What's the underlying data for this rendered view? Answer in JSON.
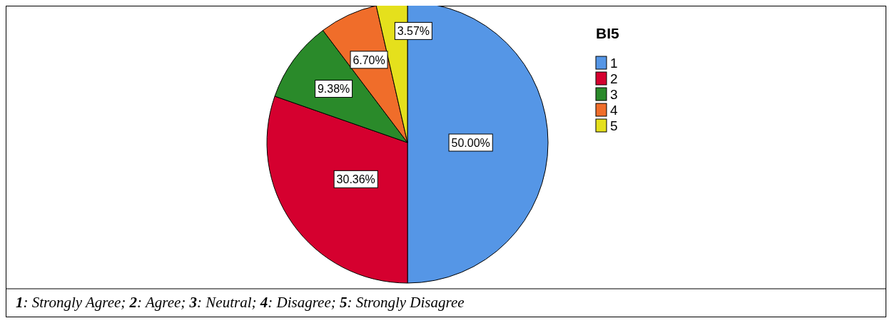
{
  "chart_data": {
    "type": "pie",
    "legend_title": "BI5",
    "categories": [
      "1",
      "2",
      "3",
      "4",
      "5"
    ],
    "values": [
      50.0,
      30.36,
      9.38,
      6.7,
      3.57
    ],
    "colors": [
      "#5596e6",
      "#d5002f",
      "#2a8a2a",
      "#f06d2a",
      "#e5e01c"
    ],
    "value_labels": [
      "50.00%",
      "30.36%",
      "9.38%",
      "6.70%",
      "3.57%"
    ],
    "legend": "right",
    "annotations": [
      "1: Strongly Agree; 2: Agree; 3: Neutral; 4: Disagree; 5: Strongly Disagree"
    ]
  }
}
